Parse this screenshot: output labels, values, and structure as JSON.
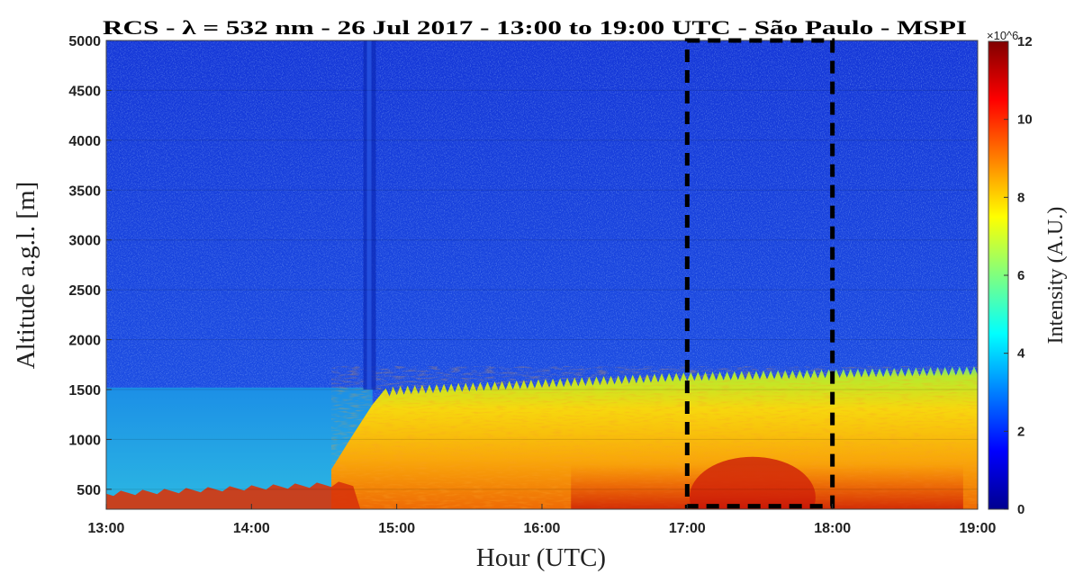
{
  "chart_data": {
    "type": "heatmap",
    "title": "RCS - λ = 532 nm - 26 Jul 2017 - 13:00 to 19:00 UTC - São Paulo - MSPI",
    "xlabel": "Hour (UTC)",
    "ylabel": "Altitude a.g.l. [m]",
    "x_ticks": [
      "13:00",
      "14:00",
      "15:00",
      "16:00",
      "17:00",
      "18:00",
      "19:00"
    ],
    "xlim": [
      "13:00",
      "19:00"
    ],
    "y_ticks": [
      500,
      1000,
      1500,
      2000,
      2500,
      3000,
      3500,
      4000,
      4500,
      5000
    ],
    "ylim": [
      300,
      5000
    ],
    "colorbar": {
      "label": "Intensity (A.U.)",
      "ticks": [
        0,
        2,
        4,
        6,
        8,
        10,
        12
      ],
      "range": [
        0,
        12
      ],
      "multiplier": "×10^6",
      "colormap": "jet"
    },
    "boundary_layer_top_m": [
      {
        "time": "13:00",
        "altitude": 1520
      },
      {
        "time": "14:00",
        "altitude": 1520
      },
      {
        "time": "14:50",
        "altitude": 1530
      },
      {
        "time": "15:00",
        "altitude": 1480
      },
      {
        "time": "16:00",
        "altitude": 1550
      },
      {
        "time": "17:00",
        "altitude": 1620
      },
      {
        "time": "18:00",
        "altitude": 1650
      },
      {
        "time": "19:00",
        "altitude": 1680
      }
    ],
    "highlight_box": {
      "x_start": "17:00",
      "x_end": "18:00",
      "y_start": 330,
      "y_end": 5000,
      "style": "dashed black"
    },
    "grid": true,
    "legend": "none"
  },
  "colors": {
    "free_troposphere": "#1a3fd9",
    "residual_layer": "#1e9de8",
    "boundary_layer": "#f5c50a",
    "high_intensity": "#d62a08",
    "box": "#000000"
  }
}
